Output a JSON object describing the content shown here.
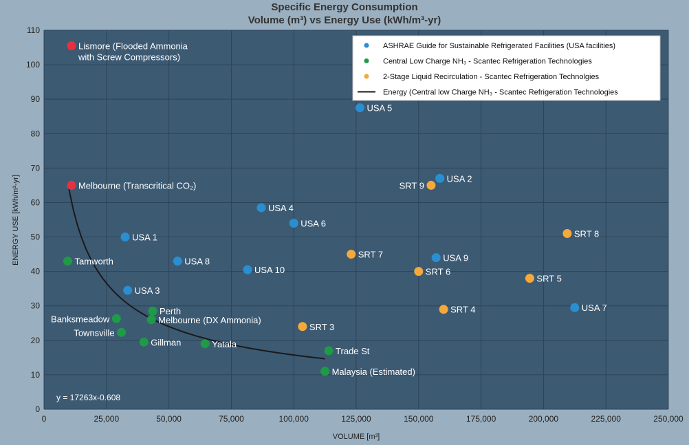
{
  "chart_data": {
    "type": "scatter",
    "title": "Specific Energy Consumption",
    "subtitle": "Volume (m³) vs Energy Use (kWh/m³-yr)",
    "xlabel": "VOLUME [m³]",
    "ylabel": "ENERGY USE  [kWh/m³-yr]",
    "xlim": [
      0,
      250000
    ],
    "ylim": [
      0,
      110
    ],
    "x_ticks": [
      0,
      25000,
      50000,
      75000,
      100000,
      125000,
      150000,
      175000,
      200000,
      225000,
      250000
    ],
    "x_tick_labels": [
      "0",
      "25,000",
      "50,000",
      "75,000",
      "100,000",
      "125,000",
      "150,000",
      "175,000",
      "200,000",
      "225,000",
      "250,000"
    ],
    "y_ticks": [
      0,
      10,
      20,
      30,
      40,
      50,
      60,
      70,
      80,
      90,
      100,
      110
    ],
    "y_tick_labels": [
      "0",
      "10",
      "20",
      "30",
      "40",
      "50",
      "60",
      "70",
      "80",
      "90",
      "100",
      "110"
    ],
    "grid": true,
    "legend_position": "top-right",
    "colors": {
      "plot_background": "#3d5a73",
      "page_background": "#9aafbf",
      "grid": "#2c4458",
      "ashrae": "#2a8fd0",
      "central": "#1f9a47",
      "two_stage": "#f5a93a",
      "highlight": "#e8303f",
      "curve": "#1a1a1a"
    },
    "legend": [
      {
        "kind": "marker",
        "color": "#2a8fd0",
        "text": "ASHRAE Guide for Sustainable Refrigerated Facilities (USA facilities)"
      },
      {
        "kind": "marker",
        "color": "#1f9a47",
        "text": "Central Low Charge NH₃ - Scantec Refrigeration Technologies"
      },
      {
        "kind": "marker",
        "color": "#f5a93a",
        "text": "2-Stage Liquid Recirculation - Scantec Refrigeration Technolgies"
      },
      {
        "kind": "line",
        "color": "#1a1a1a",
        "text": "Energy (Central low Charge NH₃ - Scantec Refrigeration Technologies"
      }
    ],
    "series": [
      {
        "name": "ASHRAE Guide for Sustainable Refrigerated Facilities (USA facilities)",
        "color": "#2a8fd0",
        "points": [
          {
            "label": "USA 1",
            "x": 32500,
            "y": 50,
            "anchor": "right"
          },
          {
            "label": "USA 2",
            "x": 158500,
            "y": 67,
            "anchor": "right"
          },
          {
            "label": "USA 3",
            "x": 33500,
            "y": 34.5,
            "anchor": "right"
          },
          {
            "label": "USA 4",
            "x": 87000,
            "y": 58.5,
            "anchor": "right"
          },
          {
            "label": "USA 5",
            "x": 126500,
            "y": 87.5,
            "anchor": "right"
          },
          {
            "label": "USA 6",
            "x": 100000,
            "y": 54,
            "anchor": "right"
          },
          {
            "label": "USA 7",
            "x": 212500,
            "y": 29.5,
            "anchor": "right"
          },
          {
            "label": "USA 8",
            "x": 53500,
            "y": 43,
            "anchor": "right"
          },
          {
            "label": "USA 9",
            "x": 157000,
            "y": 44,
            "anchor": "right"
          },
          {
            "label": "USA 10",
            "x": 81500,
            "y": 40.5,
            "anchor": "right"
          }
        ]
      },
      {
        "name": "Central Low Charge NH₃ - Scantec Refrigeration Technologies",
        "color": "#1f9a47",
        "points": [
          {
            "label": "Tamworth",
            "x": 9500,
            "y": 43,
            "anchor": "right"
          },
          {
            "label": "Perth",
            "x": 43500,
            "y": 28.5,
            "anchor": "right"
          },
          {
            "label": "Melbourne (DX Ammonia)",
            "x": 43000,
            "y": 26,
            "anchor": "right"
          },
          {
            "label": "Banksmeadow",
            "x": 29000,
            "y": 26.3,
            "anchor": "left"
          },
          {
            "label": "Townsville",
            "x": 31000,
            "y": 22.3,
            "anchor": "left"
          },
          {
            "label": "Gillman",
            "x": 40000,
            "y": 19.5,
            "anchor": "right"
          },
          {
            "label": "Yatala",
            "x": 64500,
            "y": 19,
            "anchor": "right"
          },
          {
            "label": "Trade St",
            "x": 114000,
            "y": 17,
            "anchor": "right"
          },
          {
            "label": "Malaysia (Estimated)",
            "x": 112500,
            "y": 11,
            "anchor": "right"
          }
        ]
      },
      {
        "name": "2-Stage Liquid Recirculation - Scantec Refrigeration Technolgies",
        "color": "#f5a93a",
        "points": [
          {
            "label": "SRT 3",
            "x": 103500,
            "y": 24,
            "anchor": "right"
          },
          {
            "label": "SRT 4",
            "x": 160000,
            "y": 29,
            "anchor": "right"
          },
          {
            "label": "SRT 5",
            "x": 194500,
            "y": 38,
            "anchor": "right"
          },
          {
            "label": "SRT 6",
            "x": 150000,
            "y": 40,
            "anchor": "right"
          },
          {
            "label": "SRT 7",
            "x": 123000,
            "y": 45,
            "anchor": "right"
          },
          {
            "label": "SRT 8",
            "x": 209500,
            "y": 51,
            "anchor": "right"
          },
          {
            "label": "SRT 9",
            "x": 155000,
            "y": 65,
            "anchor": "left"
          }
        ]
      },
      {
        "name": "",
        "color": "#e8303f",
        "points": [
          {
            "label": "Lismore (Flooded Ammonia",
            "label2": "with Screw Compressors)",
            "x": 11000,
            "y": 105.5,
            "anchor": "right"
          },
          {
            "label": "Melbourne (Transcritical CO₂)",
            "x": 11000,
            "y": 65,
            "anchor": "right"
          }
        ]
      }
    ],
    "trendline": {
      "equation": "y = 17263x-0.608",
      "coefficient": 17263,
      "exponent": -0.608,
      "x_start": 10000,
      "x_end": 112500
    }
  }
}
